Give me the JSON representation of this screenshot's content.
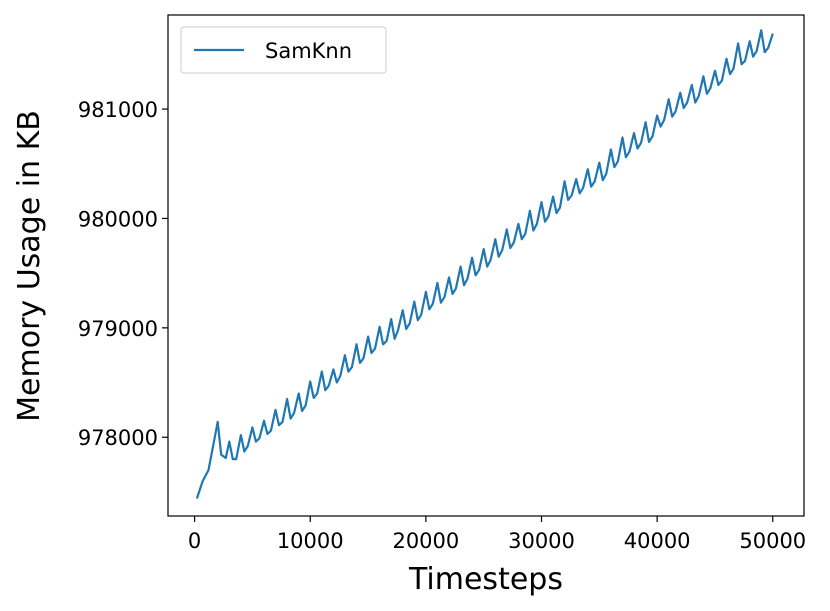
{
  "chart_data": {
    "type": "line",
    "title": "",
    "xlabel": "Timesteps",
    "ylabel": "Memory Usage in KB",
    "xlim": [
      -2300,
      52700
    ],
    "ylim": [
      977280,
      981860
    ],
    "xticks": [
      0,
      10000,
      20000,
      30000,
      40000,
      50000
    ],
    "xtick_labels": [
      "0",
      "10000",
      "20000",
      "30000",
      "40000",
      "50000"
    ],
    "yticks": [
      978000,
      979000,
      980000,
      981000
    ],
    "ytick_labels": [
      "978000",
      "979000",
      "980000",
      "981000"
    ],
    "grid": false,
    "legend_position": "top-left",
    "series": [
      {
        "name": "SamKnn",
        "color": "#1f77b4",
        "x": [
          200,
          700,
          1200,
          2000,
          2300,
          2700,
          3000,
          3300,
          3600,
          4000,
          4300,
          4600,
          5000,
          5300,
          5600,
          6000,
          6300,
          6600,
          7000,
          7300,
          7600,
          8000,
          8300,
          8600,
          9000,
          9300,
          9600,
          10000,
          10300,
          10600,
          11000,
          11300,
          11600,
          12000,
          12300,
          12600,
          13000,
          13300,
          13600,
          14000,
          14300,
          14600,
          15000,
          15300,
          15600,
          16000,
          16300,
          16600,
          17000,
          17300,
          17600,
          18000,
          18300,
          18600,
          19000,
          19300,
          19600,
          20000,
          20300,
          20600,
          21000,
          21300,
          21600,
          22000,
          22300,
          22600,
          23000,
          23300,
          23600,
          24000,
          24300,
          24600,
          25000,
          25300,
          25600,
          26000,
          26300,
          26600,
          27000,
          27300,
          27600,
          28000,
          28300,
          28600,
          29000,
          29300,
          29600,
          30000,
          30300,
          30600,
          31000,
          31300,
          31600,
          32000,
          32300,
          32600,
          33000,
          33300,
          33600,
          34000,
          34300,
          34600,
          35000,
          35300,
          35600,
          36000,
          36300,
          36600,
          37000,
          37300,
          37600,
          38000,
          38300,
          38600,
          39000,
          39300,
          39600,
          40000,
          40300,
          40600,
          41000,
          41300,
          41600,
          42000,
          42300,
          42600,
          43000,
          43300,
          43600,
          44000,
          44300,
          44600,
          45000,
          45300,
          45600,
          46000,
          46300,
          46600,
          47000,
          47300,
          47600,
          48000,
          48300,
          48600,
          49000,
          49300,
          49600,
          50000
        ],
        "values": [
          977440,
          977600,
          977700,
          978140,
          977840,
          977810,
          977960,
          977800,
          977800,
          978020,
          977870,
          977920,
          978090,
          977960,
          977990,
          978150,
          978030,
          978060,
          978250,
          978110,
          978140,
          978350,
          978170,
          978220,
          978400,
          978240,
          978290,
          978510,
          978360,
          978400,
          978600,
          978430,
          978470,
          978620,
          978500,
          978560,
          978750,
          978600,
          978640,
          978850,
          978680,
          978720,
          978920,
          978770,
          978810,
          979010,
          978850,
          978880,
          979080,
          978900,
          978980,
          979160,
          978990,
          979040,
          979240,
          979070,
          979120,
          979330,
          979170,
          979220,
          979410,
          979230,
          979280,
          979460,
          979310,
          979360,
          979560,
          979390,
          979450,
          979640,
          979480,
          979530,
          979720,
          979560,
          979620,
          979810,
          979650,
          979710,
          979900,
          979730,
          979780,
          979950,
          979810,
          979860,
          980070,
          979890,
          979950,
          980150,
          979970,
          980020,
          980200,
          980050,
          980100,
          980340,
          980170,
          980210,
          980360,
          980230,
          980280,
          980450,
          980290,
          980340,
          980510,
          980350,
          980410,
          980630,
          980470,
          980520,
          980740,
          980560,
          980610,
          980780,
          980640,
          980690,
          980880,
          980700,
          980750,
          980940,
          980840,
          980900,
          981090,
          980930,
          980980,
          981150,
          981010,
          981060,
          981220,
          981060,
          981120,
          981300,
          981140,
          981190,
          981350,
          981220,
          981260,
          981460,
          981320,
          981370,
          981600,
          981410,
          981440,
          981620,
          981480,
          981530,
          981720,
          981520,
          981560,
          981690
        ]
      }
    ]
  }
}
